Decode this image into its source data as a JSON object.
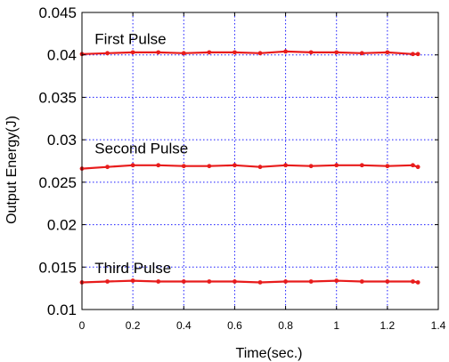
{
  "chart_data": {
    "type": "line",
    "xlabel": "Time(sec.)",
    "ylabel": "Output Energy(J)",
    "xlim": [
      0,
      1.4
    ],
    "ylim": [
      0.01,
      0.045
    ],
    "x_ticks": [
      "0",
      "0.2",
      "0.4",
      "0.6",
      "0.8",
      "1",
      "1.2",
      "1.4"
    ],
    "y_ticks": [
      "0.01",
      "0.015",
      "0.02",
      "0.025",
      "0.03",
      "0.035",
      "0.04",
      "0.045"
    ],
    "grid": true,
    "series_color": "#e81c1c",
    "annotations": [
      {
        "text": "First Pulse",
        "x": 0.05,
        "y": 0.0413
      },
      {
        "text": "Second Pulse",
        "x": 0.05,
        "y": 0.0284
      },
      {
        "text": "Third Pulse",
        "x": 0.05,
        "y": 0.0143
      }
    ],
    "series": [
      {
        "x": [
          0,
          0.1,
          0.2,
          0.3,
          0.4,
          0.5,
          0.6,
          0.7,
          0.8,
          0.9,
          1.0,
          1.1,
          1.2,
          1.3,
          1.32
        ],
        "values": [
          0.0401,
          0.0402,
          0.0403,
          0.0403,
          0.0402,
          0.0403,
          0.0403,
          0.0402,
          0.0404,
          0.0403,
          0.0403,
          0.0402,
          0.0403,
          0.0401,
          0.0401
        ]
      },
      {
        "x": [
          0,
          0.1,
          0.2,
          0.3,
          0.4,
          0.5,
          0.6,
          0.7,
          0.8,
          0.9,
          1.0,
          1.1,
          1.2,
          1.3,
          1.32
        ],
        "values": [
          0.0266,
          0.0268,
          0.027,
          0.027,
          0.0269,
          0.0269,
          0.027,
          0.0268,
          0.027,
          0.0269,
          0.027,
          0.027,
          0.0269,
          0.027,
          0.0268
        ]
      },
      {
        "x": [
          0,
          0.1,
          0.2,
          0.3,
          0.4,
          0.5,
          0.6,
          0.7,
          0.8,
          0.9,
          1.0,
          1.1,
          1.2,
          1.3,
          1.32
        ],
        "values": [
          0.0132,
          0.0133,
          0.0134,
          0.0133,
          0.0133,
          0.0133,
          0.0133,
          0.0132,
          0.0133,
          0.0133,
          0.0134,
          0.0133,
          0.0133,
          0.0133,
          0.0132
        ]
      }
    ]
  }
}
